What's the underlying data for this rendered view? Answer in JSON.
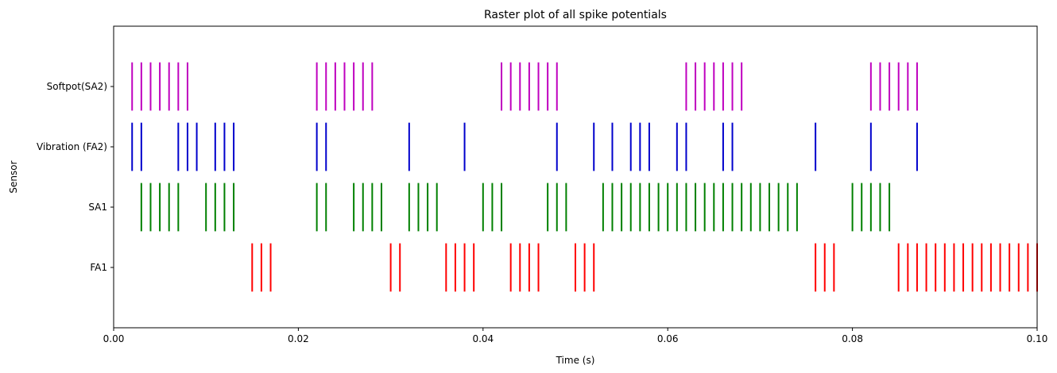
{
  "chart_data": {
    "type": "raster",
    "title": "Raster plot of all spike potentials",
    "xlabel": "Time (s)",
    "ylabel": "Sensor",
    "xlim": [
      0,
      0.1
    ],
    "ylim": [
      -1,
      4
    ],
    "x_ticks": [
      0,
      0.02,
      0.04,
      0.06,
      0.08,
      0.1
    ],
    "x_tick_labels": [
      "0.00",
      "0.02",
      "0.04",
      "0.06",
      "0.08",
      "0.10"
    ],
    "grid": false,
    "series": [
      {
        "name": "FA1",
        "color": "#ff0000",
        "row": 0,
        "spikes": [
          0.015,
          0.016,
          0.017,
          0.03,
          0.031,
          0.036,
          0.037,
          0.038,
          0.039,
          0.043,
          0.044,
          0.045,
          0.046,
          0.05,
          0.051,
          0.052,
          0.076,
          0.077,
          0.078,
          0.085,
          0.086,
          0.087,
          0.088,
          0.089,
          0.09,
          0.091,
          0.092,
          0.093,
          0.094,
          0.095,
          0.096,
          0.097,
          0.098,
          0.099,
          0.1
        ]
      },
      {
        "name": "SA1",
        "color": "#008000",
        "row": 1,
        "spikes": [
          0.003,
          0.004,
          0.005,
          0.006,
          0.007,
          0.01,
          0.011,
          0.012,
          0.013,
          0.022,
          0.023,
          0.026,
          0.027,
          0.028,
          0.029,
          0.032,
          0.033,
          0.034,
          0.035,
          0.04,
          0.041,
          0.042,
          0.047,
          0.048,
          0.049,
          0.053,
          0.054,
          0.055,
          0.056,
          0.057,
          0.058,
          0.059,
          0.06,
          0.061,
          0.062,
          0.063,
          0.064,
          0.065,
          0.066,
          0.067,
          0.068,
          0.069,
          0.07,
          0.071,
          0.072,
          0.073,
          0.074,
          0.08,
          0.081,
          0.082,
          0.083,
          0.084
        ]
      },
      {
        "name": "Vibration (FA2)",
        "color": "#0000cc",
        "row": 2,
        "spikes": [
          0.002,
          0.003,
          0.007,
          0.008,
          0.009,
          0.011,
          0.012,
          0.013,
          0.022,
          0.023,
          0.032,
          0.038,
          0.048,
          0.052,
          0.054,
          0.056,
          0.057,
          0.058,
          0.061,
          0.062,
          0.066,
          0.067,
          0.076,
          0.082,
          0.087
        ]
      },
      {
        "name": "Softpot(SA2)",
        "color": "#bf00bf",
        "row": 3,
        "spikes": [
          0.002,
          0.003,
          0.004,
          0.005,
          0.006,
          0.007,
          0.008,
          0.022,
          0.023,
          0.024,
          0.025,
          0.026,
          0.027,
          0.028,
          0.042,
          0.043,
          0.044,
          0.045,
          0.046,
          0.047,
          0.048,
          0.062,
          0.063,
          0.064,
          0.065,
          0.066,
          0.067,
          0.068,
          0.082,
          0.083,
          0.084,
          0.085,
          0.086,
          0.087
        ]
      }
    ]
  }
}
